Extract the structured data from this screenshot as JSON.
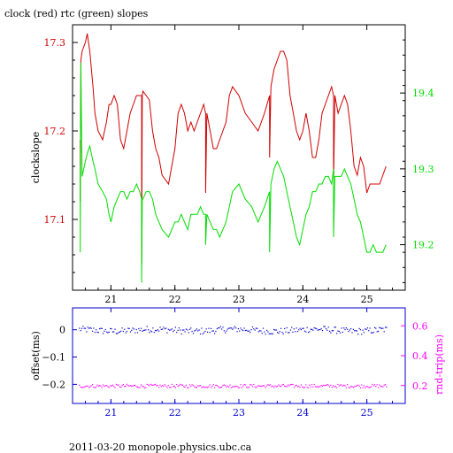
{
  "colors": {
    "clock": "#d00000",
    "rtc": "#00dd00",
    "offset": "#0000cc",
    "roundtrip": "#ff00ff",
    "axis": "#000000"
  },
  "footer": "2011-03-20  monopole.physics.ubc.ca",
  "chart_data": [
    {
      "type": "line",
      "title": "clock (red) rtc (green) slopes",
      "ylabel": "clockslope",
      "xlim": [
        20.4,
        25.6
      ],
      "ylim": [
        17.02,
        17.32
      ],
      "y2lim": [
        19.14,
        19.49
      ],
      "xticks": [
        21,
        22,
        23,
        24,
        25
      ],
      "yticks": [
        17.1,
        17.2,
        17.3
      ],
      "yticks_labels": [
        "17.1",
        "17.2",
        "17.3"
      ],
      "y2ticks": [
        19.2,
        19.3,
        19.4
      ],
      "y2ticks_labels": [
        "19.2",
        "19.3",
        "19.4"
      ],
      "series": [
        {
          "name": "clock",
          "axis": "left",
          "x": [
            20.52,
            20.52,
            20.53,
            20.55,
            20.6,
            20.63,
            20.67,
            20.72,
            20.75,
            20.8,
            20.87,
            20.93,
            20.97,
            21.0,
            21.05,
            21.1,
            21.15,
            21.2,
            21.25,
            21.3,
            21.35,
            21.4,
            21.45,
            21.48,
            21.48,
            21.49,
            21.5,
            21.55,
            21.6,
            21.65,
            21.7,
            21.75,
            21.8,
            21.9,
            22.0,
            22.05,
            22.1,
            22.15,
            22.2,
            22.25,
            22.3,
            22.35,
            22.4,
            22.45,
            22.48,
            22.48,
            22.5,
            22.55,
            22.6,
            22.65,
            22.7,
            22.75,
            22.8,
            22.85,
            22.9,
            23.0,
            23.1,
            23.2,
            23.3,
            23.4,
            23.48,
            23.48,
            23.5,
            23.55,
            23.6,
            23.65,
            23.7,
            23.75,
            23.8,
            23.85,
            23.9,
            23.95,
            24.0,
            24.05,
            24.1,
            24.15,
            24.2,
            24.25,
            24.3,
            24.35,
            24.4,
            24.45,
            24.48,
            24.48,
            24.5,
            24.55,
            24.6,
            24.65,
            24.7,
            24.75,
            24.8,
            24.85,
            24.9,
            24.95,
            25.0,
            25.05,
            25.1,
            25.15,
            25.2,
            25.25,
            25.3
          ],
          "y": [
            17.19,
            17.12,
            17.28,
            17.29,
            17.3,
            17.31,
            17.29,
            17.25,
            17.22,
            17.2,
            17.19,
            17.21,
            17.23,
            17.23,
            17.24,
            17.23,
            17.19,
            17.18,
            17.2,
            17.22,
            17.23,
            17.24,
            17.24,
            17.24,
            17.05,
            17.24,
            17.245,
            17.24,
            17.235,
            17.2,
            17.18,
            17.17,
            17.15,
            17.14,
            17.18,
            17.22,
            17.23,
            17.22,
            17.2,
            17.21,
            17.2,
            17.21,
            17.22,
            17.23,
            17.22,
            17.13,
            17.22,
            17.2,
            17.18,
            17.18,
            17.19,
            17.2,
            17.21,
            17.24,
            17.25,
            17.24,
            17.22,
            17.21,
            17.2,
            17.22,
            17.24,
            17.17,
            17.25,
            17.27,
            17.28,
            17.29,
            17.29,
            17.28,
            17.24,
            17.22,
            17.2,
            17.19,
            17.2,
            17.22,
            17.2,
            17.17,
            17.17,
            17.19,
            17.22,
            17.23,
            17.24,
            17.25,
            17.24,
            17.14,
            17.24,
            17.22,
            17.23,
            17.24,
            17.23,
            17.2,
            17.16,
            17.15,
            17.17,
            17.16,
            17.13,
            17.14,
            17.14,
            17.14,
            17.14,
            17.15,
            17.16
          ]
        },
        {
          "name": "rtc",
          "axis": "right",
          "x": [
            20.52,
            20.52,
            20.53,
            20.55,
            20.6,
            20.63,
            20.67,
            20.72,
            20.75,
            20.8,
            20.87,
            20.93,
            20.97,
            21.0,
            21.05,
            21.1,
            21.15,
            21.2,
            21.25,
            21.3,
            21.35,
            21.4,
            21.45,
            21.48,
            21.48,
            21.49,
            21.5,
            21.55,
            21.6,
            21.65,
            21.7,
            21.75,
            21.8,
            21.9,
            22.0,
            22.05,
            22.1,
            22.15,
            22.2,
            22.25,
            22.3,
            22.35,
            22.4,
            22.45,
            22.48,
            22.48,
            22.5,
            22.55,
            22.6,
            22.65,
            22.7,
            22.75,
            22.8,
            22.85,
            22.9,
            23.0,
            23.1,
            23.2,
            23.3,
            23.4,
            23.48,
            23.48,
            23.5,
            23.55,
            23.6,
            23.65,
            23.7,
            23.75,
            23.8,
            23.85,
            23.9,
            23.95,
            24.0,
            24.05,
            24.1,
            24.15,
            24.2,
            24.25,
            24.3,
            24.35,
            24.4,
            24.45,
            24.48,
            24.48,
            24.5,
            24.55,
            24.6,
            24.65,
            24.7,
            24.75,
            24.8,
            24.85,
            24.9,
            24.95,
            25.0,
            25.05,
            25.1,
            25.15,
            25.2,
            25.25,
            25.3
          ],
          "y": [
            19.3,
            19.19,
            19.44,
            19.29,
            19.31,
            19.32,
            19.33,
            19.31,
            19.3,
            19.28,
            19.27,
            19.26,
            19.24,
            19.23,
            19.25,
            19.26,
            19.27,
            19.27,
            19.26,
            19.27,
            19.27,
            19.28,
            19.27,
            19.26,
            19.15,
            19.26,
            19.26,
            19.27,
            19.27,
            19.26,
            19.24,
            19.23,
            19.22,
            19.21,
            19.23,
            19.23,
            19.24,
            19.23,
            19.22,
            19.24,
            19.24,
            19.24,
            19.25,
            19.24,
            19.24,
            19.2,
            19.24,
            19.23,
            19.22,
            19.22,
            19.21,
            19.22,
            19.23,
            19.25,
            19.27,
            19.28,
            19.26,
            19.25,
            19.23,
            19.25,
            19.27,
            19.19,
            19.28,
            19.3,
            19.31,
            19.3,
            19.29,
            19.27,
            19.25,
            19.23,
            19.21,
            19.2,
            19.22,
            19.24,
            19.25,
            19.27,
            19.27,
            19.28,
            19.28,
            19.29,
            19.29,
            19.28,
            19.3,
            19.21,
            19.29,
            19.29,
            19.29,
            19.3,
            19.29,
            19.28,
            19.26,
            19.24,
            19.23,
            19.21,
            19.19,
            19.19,
            19.2,
            19.19,
            19.19,
            19.19,
            19.2
          ]
        }
      ]
    },
    {
      "type": "scatter",
      "ylabel": "offset(ms)",
      "y2label": "rnd-trip(ms)",
      "xlim": [
        20.4,
        25.6
      ],
      "ylim": [
        -0.27,
        0.08
      ],
      "y2lim": [
        0.08,
        0.72
      ],
      "xticks": [
        21,
        22,
        23,
        24,
        25
      ],
      "yticks": [
        0.0,
        -0.1,
        -0.2
      ],
      "yticks_labels": [
        "0",
        "−0.1",
        "−0.2"
      ],
      "y2ticks": [
        0.2,
        0.4,
        0.6
      ],
      "y2ticks_labels": [
        "0.2",
        "0.4",
        "0.6"
      ],
      "series": [
        {
          "name": "offset",
          "axis": "left",
          "x_range": [
            20.5,
            25.3
          ],
          "level": 0.0,
          "spread": 0.012
        },
        {
          "name": "rnd-trip",
          "axis": "right",
          "x_range": [
            20.5,
            25.3
          ],
          "level": 0.2,
          "spread": 0.012
        }
      ]
    }
  ]
}
